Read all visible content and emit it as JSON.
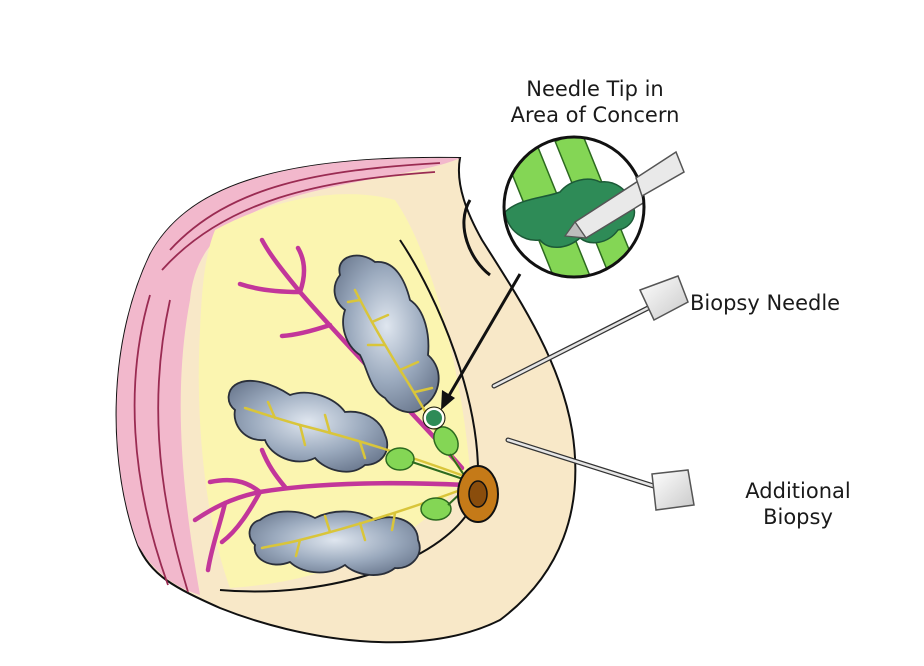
{
  "labels": {
    "needle_tip_line1": "Needle Tip in",
    "needle_tip_line2": "Area of Concern",
    "biopsy_needle": "Biopsy Needle",
    "additional_line1": "Additional",
    "additional_line2": "Biopsy"
  },
  "colors": {
    "skin": "#f8e8c8",
    "outline": "#111111",
    "fat_band": "#f2b8cc",
    "tissue": "#fbf5b0",
    "vessel": "#c2369a",
    "lobule": "#8e9eb4",
    "duct": "#d9c53a",
    "green": "#84d655",
    "nipple": "#c57a18",
    "lesion": "#2e8b57"
  }
}
